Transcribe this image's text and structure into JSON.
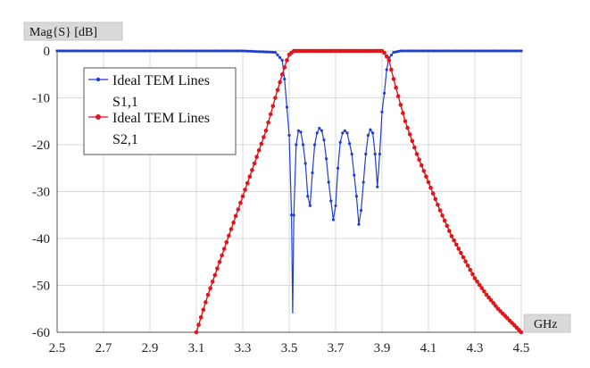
{
  "chart_data": {
    "type": "line",
    "ylabel": "Mag{S} [dB]",
    "xlabel": "GHz",
    "xlim": [
      2.5,
      4.5
    ],
    "ylim": [
      -60,
      0
    ],
    "xticks": [
      "2.5",
      "2.7",
      "2.9",
      "3.1",
      "3.3",
      "3.5",
      "3.7",
      "3.9",
      "4.1",
      "4.3",
      "4.5"
    ],
    "yticks": [
      "0",
      "-10",
      "-20",
      "-30",
      "-40",
      "-50",
      "-60"
    ],
    "grid": true,
    "legend_position": "top-left",
    "series": [
      {
        "name_line1": "Ideal TEM Lines",
        "name_line2": "S1,1",
        "color": "#1f3fcf",
        "marker": "dot",
        "points": [
          [
            2.5,
            0
          ],
          [
            3.3,
            0
          ],
          [
            3.44,
            -0.3
          ],
          [
            3.47,
            -2
          ],
          [
            3.48,
            -6
          ],
          [
            3.49,
            -12
          ],
          [
            3.5,
            -18
          ],
          [
            3.51,
            -35
          ],
          [
            3.515,
            -56
          ],
          [
            3.52,
            -35
          ],
          [
            3.53,
            -20
          ],
          [
            3.54,
            -17
          ],
          [
            3.55,
            -17.3
          ],
          [
            3.56,
            -20
          ],
          [
            3.57,
            -24
          ],
          [
            3.58,
            -31
          ],
          [
            3.59,
            -33
          ],
          [
            3.6,
            -26
          ],
          [
            3.61,
            -20
          ],
          [
            3.62,
            -17.5
          ],
          [
            3.63,
            -16.5
          ],
          [
            3.64,
            -17
          ],
          [
            3.65,
            -19
          ],
          [
            3.66,
            -23
          ],
          [
            3.67,
            -28
          ],
          [
            3.69,
            -36
          ],
          [
            3.7,
            -33
          ],
          [
            3.71,
            -25
          ],
          [
            3.72,
            -19.5
          ],
          [
            3.73,
            -17.5
          ],
          [
            3.74,
            -17
          ],
          [
            3.75,
            -17.5
          ],
          [
            3.77,
            -22
          ],
          [
            3.79,
            -31
          ],
          [
            3.8,
            -37
          ],
          [
            3.81,
            -34
          ],
          [
            3.83,
            -22
          ],
          [
            3.84,
            -18
          ],
          [
            3.85,
            -16.8
          ],
          [
            3.86,
            -17.5
          ],
          [
            3.87,
            -22
          ],
          [
            3.88,
            -29
          ],
          [
            3.89,
            -22
          ],
          [
            3.9,
            -13
          ],
          [
            3.91,
            -9
          ],
          [
            3.92,
            -4
          ],
          [
            3.93,
            -1.5
          ],
          [
            3.95,
            -0.3
          ],
          [
            3.98,
            0
          ],
          [
            4.5,
            0
          ]
        ]
      },
      {
        "name_line1": "Ideal TEM Lines",
        "name_line2": "S2,1",
        "color": "#e0161b",
        "marker": "dot",
        "points": [
          [
            3.1,
            -60
          ],
          [
            3.15,
            -52
          ],
          [
            3.2,
            -45
          ],
          [
            3.25,
            -38
          ],
          [
            3.3,
            -31
          ],
          [
            3.35,
            -24
          ],
          [
            3.4,
            -17
          ],
          [
            3.44,
            -10
          ],
          [
            3.47,
            -5
          ],
          [
            3.49,
            -2
          ],
          [
            3.5,
            -0.8
          ],
          [
            3.52,
            0
          ],
          [
            3.7,
            0
          ],
          [
            3.9,
            0
          ],
          [
            3.91,
            -0.4
          ],
          [
            3.93,
            -2
          ],
          [
            3.95,
            -6
          ],
          [
            3.98,
            -11.5
          ],
          [
            4.0,
            -15
          ],
          [
            4.05,
            -22
          ],
          [
            4.1,
            -28
          ],
          [
            4.15,
            -34
          ],
          [
            4.2,
            -39.5
          ],
          [
            4.25,
            -44
          ],
          [
            4.3,
            -48.5
          ],
          [
            4.35,
            -52
          ],
          [
            4.4,
            -55
          ],
          [
            4.45,
            -57.5
          ],
          [
            4.5,
            -60
          ]
        ]
      }
    ]
  }
}
